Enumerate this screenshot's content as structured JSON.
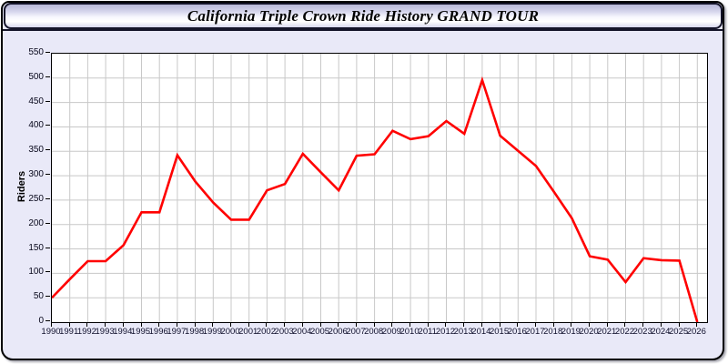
{
  "header": {
    "title": "California Triple Crown Ride History GRAND TOUR"
  },
  "colors": {
    "panel_bg": "#e9e9f8",
    "panel_border": "#000000",
    "plot_bg": "#ffffff",
    "grid": "#c8c8c8",
    "axis": "#000000",
    "line": "#ff0000",
    "tick_text": "#10102c"
  },
  "chart_data": {
    "type": "line",
    "title": "California Triple Crown Ride History GRAND TOUR",
    "xlabel": "",
    "ylabel": "Riders",
    "x": [
      1990,
      1991,
      1992,
      1993,
      1994,
      1995,
      1996,
      1997,
      1998,
      1999,
      2000,
      2001,
      2002,
      2003,
      2004,
      2005,
      2006,
      2007,
      2008,
      2009,
      2010,
      2011,
      2012,
      2013,
      2014,
      2015,
      2016,
      2017,
      2018,
      2019,
      2020,
      2021,
      2022,
      2023,
      2024,
      2025,
      2026
    ],
    "series": [
      {
        "name": "Riders",
        "color": "#ff0000",
        "values": [
          50,
          88,
          125,
          125,
          158,
          225,
          225,
          342,
          288,
          245,
          210,
          210,
          270,
          283,
          345,
          307,
          270,
          341,
          344,
          392,
          375,
          381,
          412,
          386,
          496,
          382,
          351,
          320,
          267,
          213,
          135,
          128,
          82,
          131,
          127,
          126,
          0
        ]
      }
    ],
    "ylim": [
      0,
      550
    ],
    "ytick_step": 50,
    "yticks": [
      0,
      50,
      100,
      150,
      200,
      250,
      300,
      350,
      400,
      450,
      500,
      550
    ],
    "grid": true,
    "legend_position": "none"
  }
}
